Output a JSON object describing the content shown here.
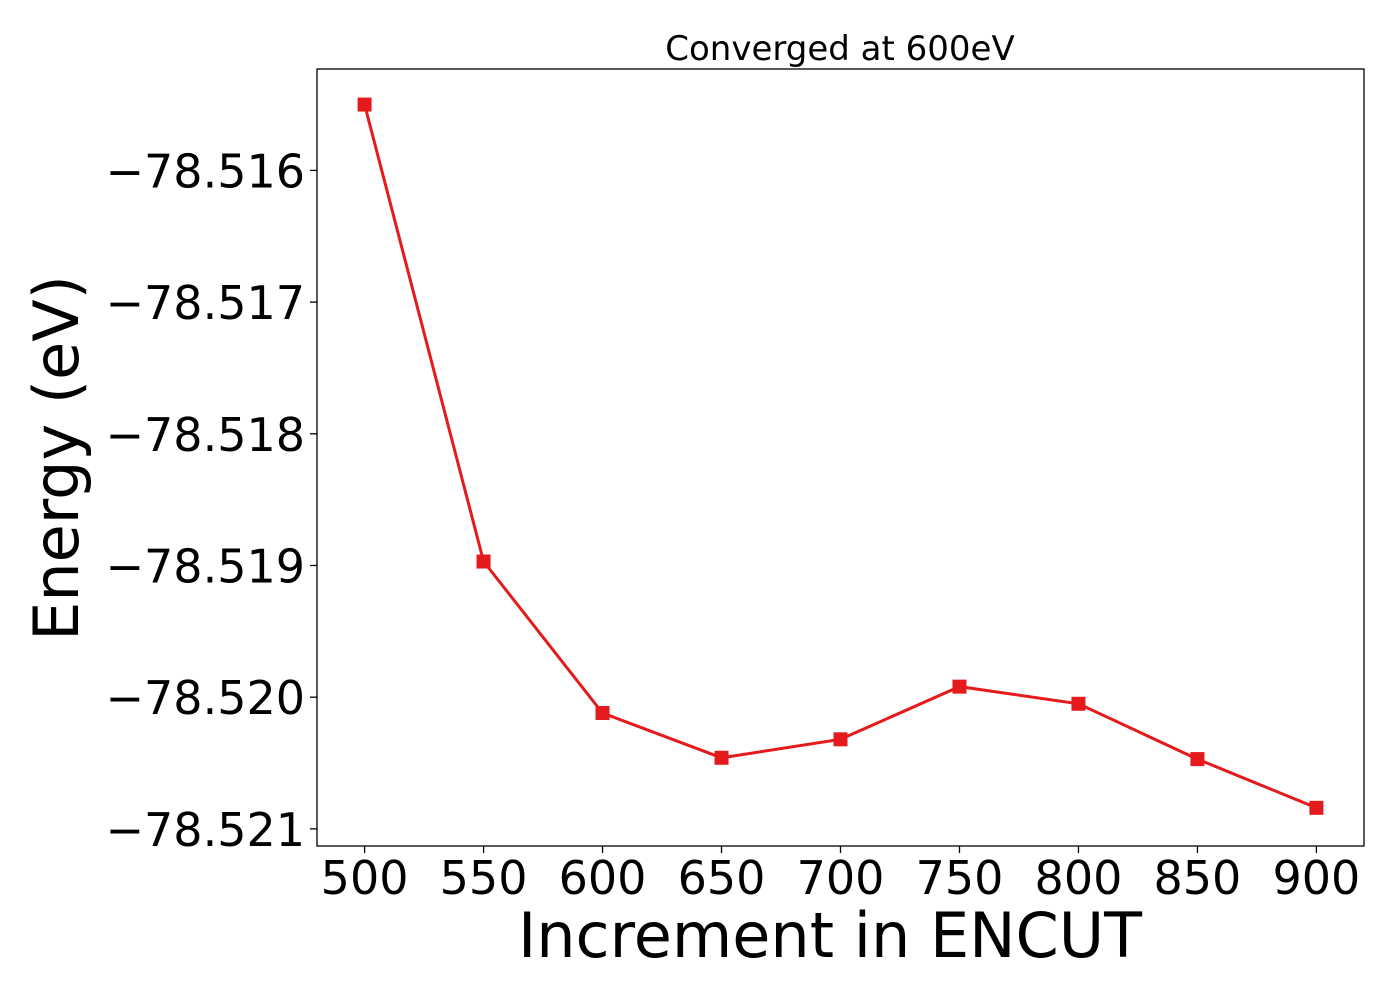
{
  "chart_data": {
    "type": "line",
    "title": "Converged at 600eV",
    "xlabel": "Increment in ENCUT",
    "ylabel": "Energy (eV)",
    "x": [
      500,
      550,
      600,
      650,
      700,
      750,
      800,
      850,
      900
    ],
    "series": [
      {
        "values": [
          -78.5155,
          -78.51897,
          -78.52012,
          -78.52046,
          -78.52032,
          -78.51992,
          -78.52005,
          -78.52047,
          -78.52084
        ],
        "color": "#e41a1c",
        "marker": "square"
      }
    ],
    "xticks": [
      500,
      550,
      600,
      650,
      700,
      750,
      800,
      850,
      900
    ],
    "xtick_labels": [
      "500",
      "550",
      "600",
      "650",
      "700",
      "750",
      "800",
      "850",
      "900"
    ],
    "yticks": [
      -78.516,
      -78.517,
      -78.518,
      -78.519,
      -78.52,
      -78.521
    ],
    "ytick_labels": [
      "−78.516",
      "−78.517",
      "−78.518",
      "−78.519",
      "−78.520",
      "−78.521"
    ],
    "xlim": [
      480,
      920
    ],
    "ylim": [
      -78.52113,
      -78.51523
    ],
    "grid": false,
    "legend": false
  }
}
